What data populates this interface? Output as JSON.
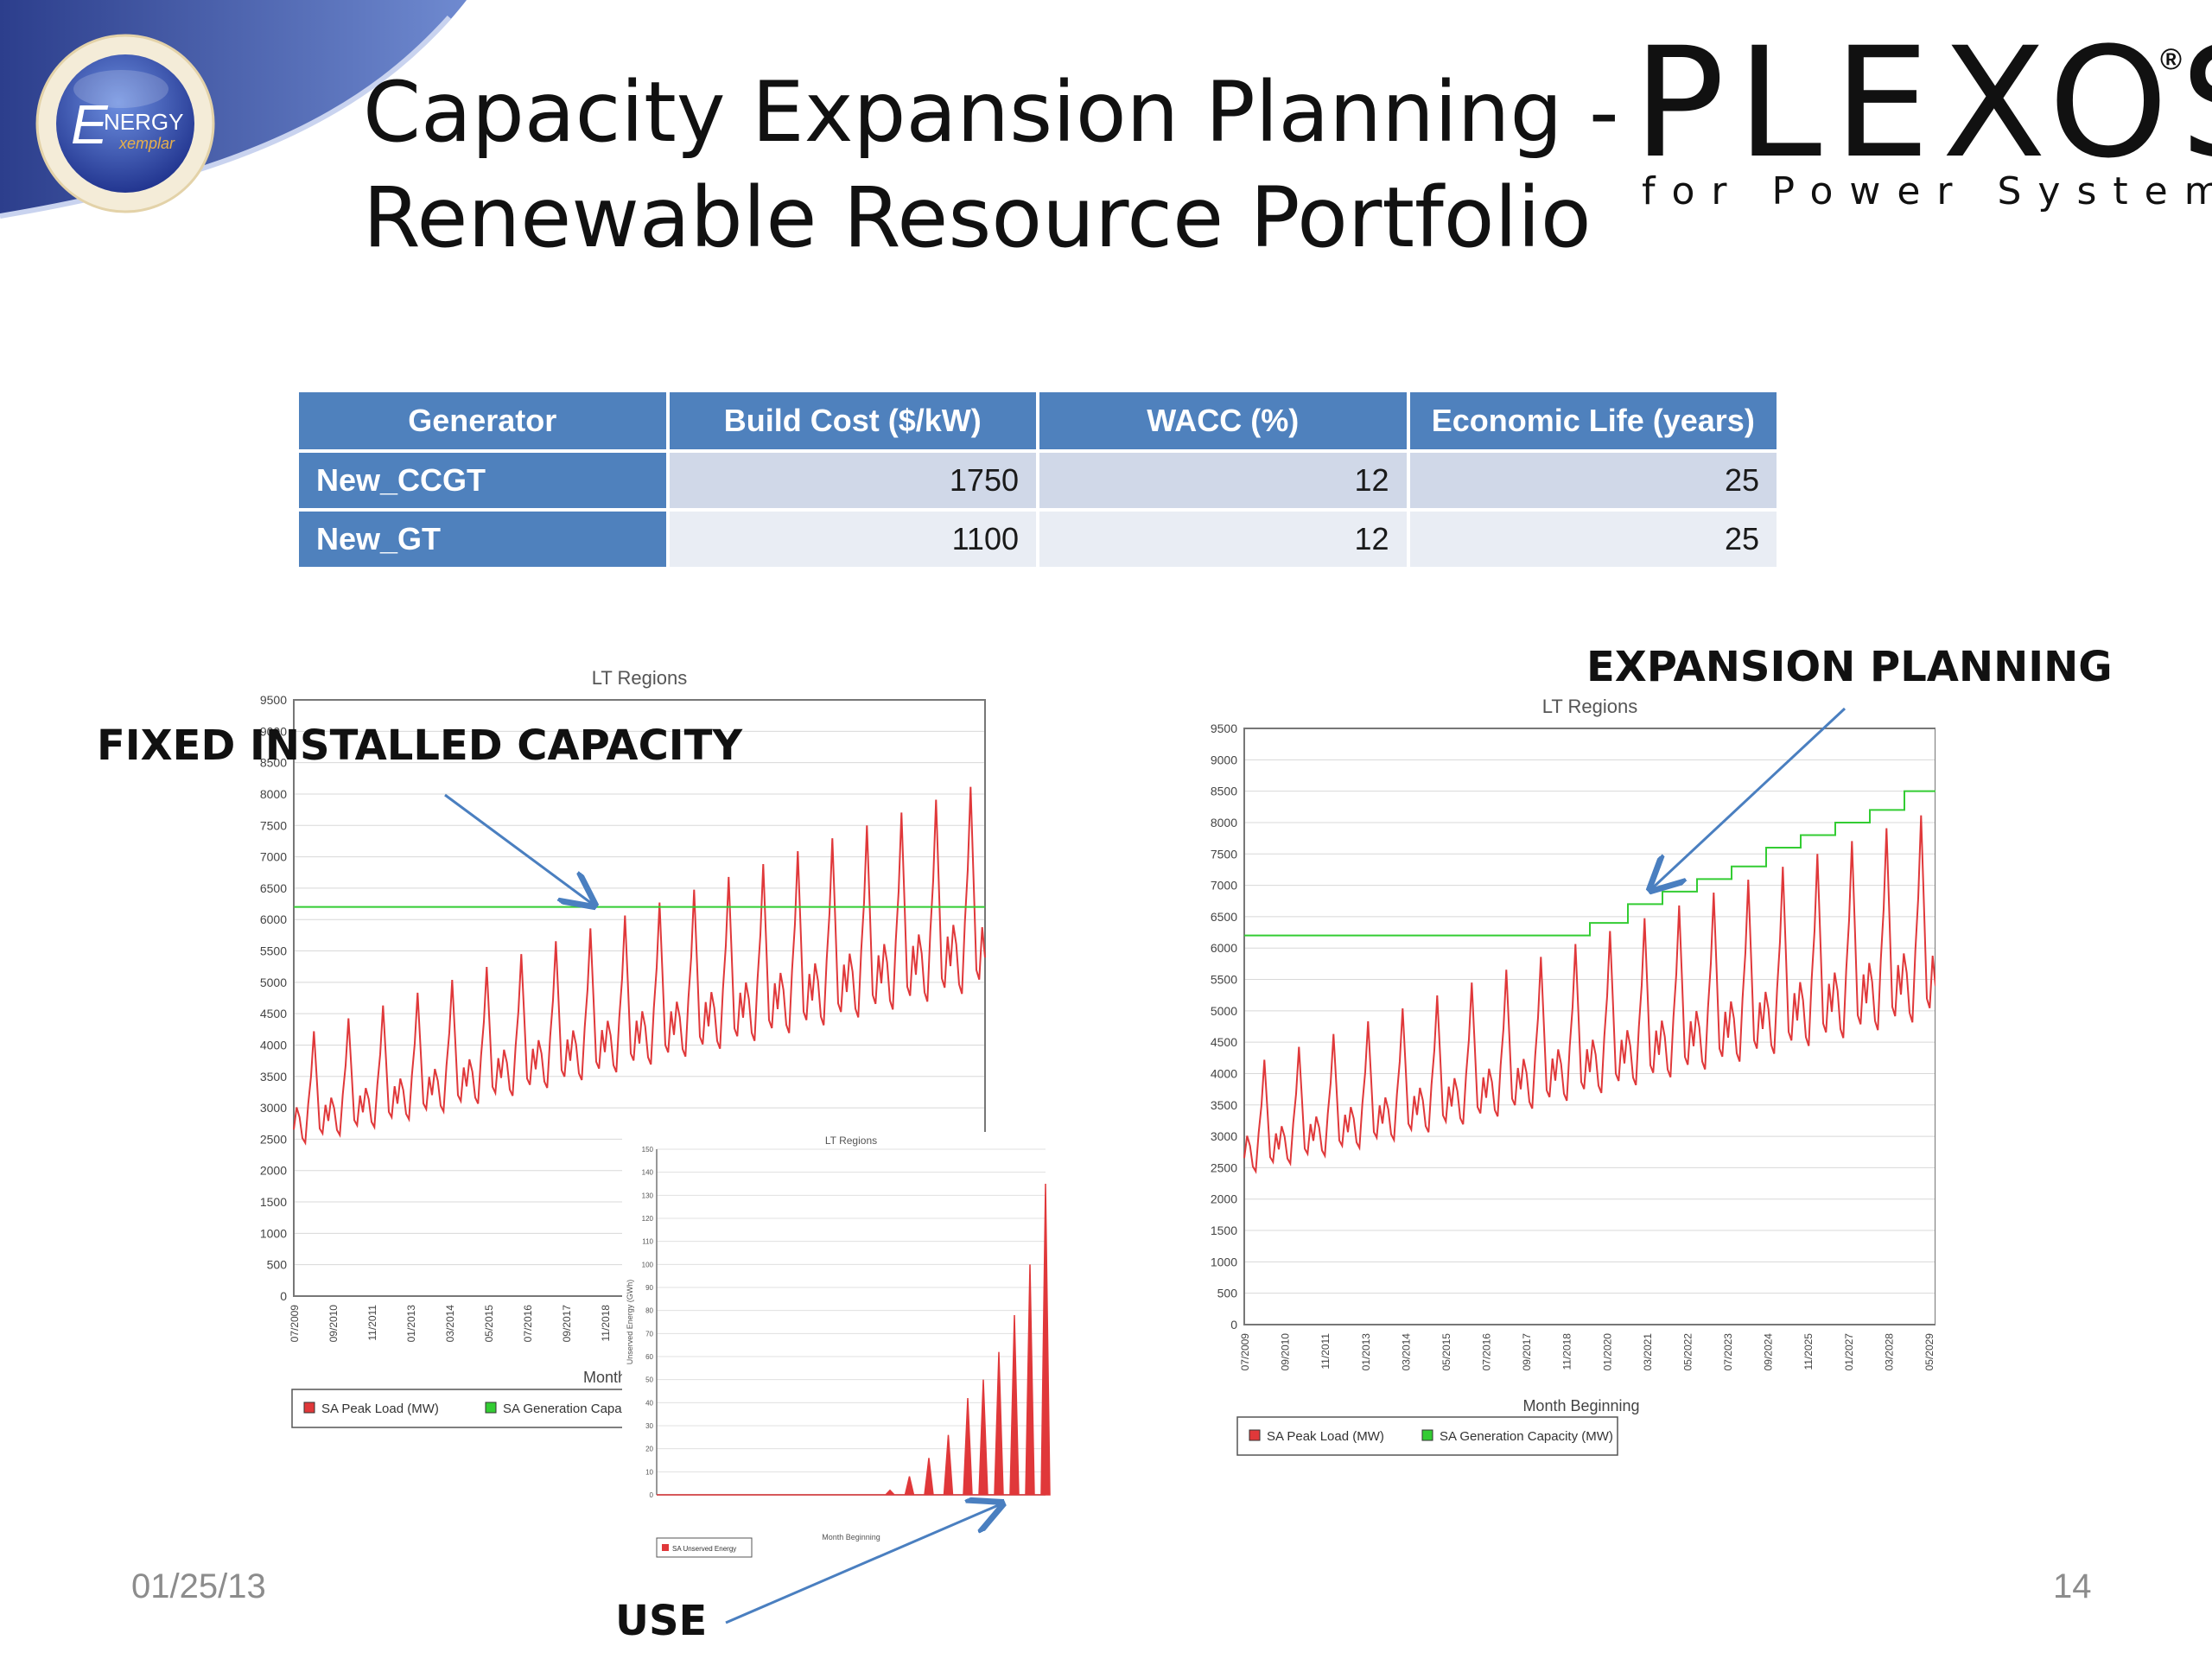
{
  "slide": {
    "title_line1": "Capacity Expansion Planning -",
    "title_line2": "Renewable Resource Portfolio",
    "logo_text": "NERGY",
    "logo_letter": "E",
    "logo_sub": "xemplar",
    "brand": "PLEXOS",
    "brand_mark": "®",
    "brand_tagline": "for Power Systems",
    "date": "01/25/13",
    "page_number": "14"
  },
  "table": {
    "headers": [
      "Generator",
      "Build Cost ($/kW)",
      "WACC (%)",
      "Economic Life (years)"
    ],
    "rows": [
      [
        "New_CCGT",
        "1750",
        "12",
        "25"
      ],
      [
        "New_GT",
        "1100",
        "12",
        "25"
      ]
    ]
  },
  "callouts": {
    "fixed": "FIXED INSTALLED CAPACITY",
    "expansion": "EXPANSION PLANNING",
    "use": "USE"
  },
  "colors": {
    "header_blue": "#4f81bd",
    "load_red": "#e0383a",
    "capacity_green": "#33cc33",
    "arrow_blue": "#4a7fc0"
  },
  "chart_data": [
    {
      "type": "line",
      "title": "LT Regions",
      "xlabel": "Month",
      "ylabel": "",
      "ylim": [
        0,
        9500
      ],
      "yticks": [
        "0",
        "500",
        "1000",
        "1500",
        "2000",
        "2500",
        "3000",
        "3500",
        "4000",
        "4500",
        "5000",
        "5500",
        "6000",
        "6500",
        "7000",
        "7500",
        "8000",
        "8500",
        "9000",
        "9500"
      ],
      "x_ticks": [
        "07/2009",
        "09/2010",
        "11/2011",
        "01/2013",
        "03/2014",
        "05/2015",
        "07/2016",
        "09/2017",
        "11/2018"
      ],
      "grid": true,
      "legend_position": "bottom",
      "series": [
        {
          "name": "SA Peak Load (MW)",
          "color": "#e0383a",
          "pattern": "seasonal",
          "years": 20,
          "base_start": 2400,
          "base_end": 4900,
          "peak_start": 4100,
          "peak_end": 8200
        },
        {
          "name": "SA Generation Capac",
          "color": "#33cc33",
          "constant": 6200
        }
      ]
    },
    {
      "type": "line",
      "title": "LT Regions",
      "xlabel": "Month Beginning",
      "ylabel": "",
      "ylim": [
        0,
        9500
      ],
      "yticks": [
        "0",
        "500",
        "1000",
        "1500",
        "2000",
        "2500",
        "3000",
        "3500",
        "4000",
        "4500",
        "5000",
        "5500",
        "6000",
        "6500",
        "7000",
        "7500",
        "8000",
        "8500",
        "9000",
        "9500"
      ],
      "x_ticks": [
        "07/2009",
        "09/2010",
        "11/2011",
        "01/2013",
        "03/2014",
        "05/2015",
        "07/2016",
        "09/2017",
        "11/2018",
        "01/2020",
        "03/2021",
        "05/2022",
        "07/2023",
        "09/2024",
        "11/2025",
        "01/2027",
        "03/2028",
        "05/2029"
      ],
      "grid": true,
      "legend_position": "bottom",
      "series": [
        {
          "name": "SA Peak Load (MW)",
          "color": "#e0383a",
          "pattern": "seasonal",
          "years": 20,
          "base_start": 2400,
          "base_end": 4900,
          "peak_start": 4100,
          "peak_end": 8200
        },
        {
          "name": "SA Generation Capacity (MW)",
          "color": "#33cc33",
          "steps": [
            [
              0,
              6200
            ],
            [
              0.5,
              6400
            ],
            [
              0.555,
              6700
            ],
            [
              0.605,
              6900
            ],
            [
              0.655,
              7100
            ],
            [
              0.705,
              7300
            ],
            [
              0.755,
              7600
            ],
            [
              0.805,
              7800
            ],
            [
              0.855,
              8000
            ],
            [
              0.905,
              8200
            ],
            [
              0.955,
              8500
            ]
          ]
        }
      ]
    },
    {
      "type": "area",
      "title": "LT Regions",
      "xlabel": "Month Beginning",
      "ylabel": "Unserved Energy (GWh)",
      "ylim": [
        0,
        150
      ],
      "yticks": [
        "0",
        "10",
        "20",
        "30",
        "40",
        "50",
        "60",
        "70",
        "80",
        "90",
        "100",
        "110",
        "120",
        "130",
        "140",
        "150"
      ],
      "grid": true,
      "legend_position": "bottom",
      "series": [
        {
          "name": "SA Unserved Energy",
          "color": "#e0383a",
          "spikes": [
            [
              0.6,
              2
            ],
            [
              0.65,
              8
            ],
            [
              0.7,
              16
            ],
            [
              0.75,
              26
            ],
            [
              0.8,
              42
            ],
            [
              0.84,
              50
            ],
            [
              0.88,
              62
            ],
            [
              0.92,
              78
            ],
            [
              0.96,
              100
            ],
            [
              1.0,
              135
            ]
          ]
        }
      ]
    }
  ]
}
